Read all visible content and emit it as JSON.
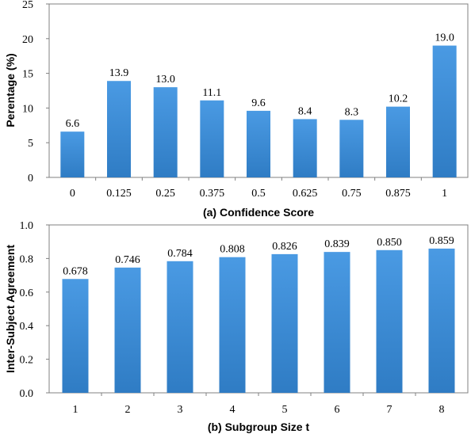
{
  "chart_data": [
    {
      "type": "bar",
      "categories": [
        "0",
        "0.125",
        "0.25",
        "0.375",
        "0.5",
        "0.625",
        "0.75",
        "0.875",
        "1"
      ],
      "values": [
        6.6,
        13.9,
        13.0,
        11.1,
        9.6,
        8.4,
        8.3,
        10.2,
        19.0
      ],
      "value_labels": [
        "6.6",
        "13.9",
        "13.0",
        "11.1",
        "9.6",
        "8.4",
        "8.3",
        "10.2",
        "19.0"
      ],
      "title": "",
      "xlabel": "(a) Confidence Score",
      "ylabel": "Perentage (%)",
      "ylim": [
        0,
        25
      ],
      "yticks": [
        "0",
        "5",
        "10",
        "15",
        "20",
        "25"
      ],
      "grid": false,
      "bar_color": "#3f8fd8"
    },
    {
      "type": "bar",
      "categories": [
        "1",
        "2",
        "3",
        "4",
        "5",
        "6",
        "7",
        "8"
      ],
      "values": [
        0.678,
        0.746,
        0.784,
        0.808,
        0.826,
        0.839,
        0.85,
        0.859
      ],
      "value_labels": [
        "0.678",
        "0.746",
        "0.784",
        "0.808",
        "0.826",
        "0.839",
        "0.850",
        "0.859"
      ],
      "title": "",
      "xlabel": "(b) Subgroup Size t",
      "ylabel": "Inter-Subject Agreement",
      "ylim": [
        0,
        1
      ],
      "yticks": [
        "0.0",
        "0.2",
        "0.4",
        "0.6",
        "0.8",
        "1.0"
      ],
      "grid": false,
      "bar_color": "#3f8fd8"
    }
  ]
}
